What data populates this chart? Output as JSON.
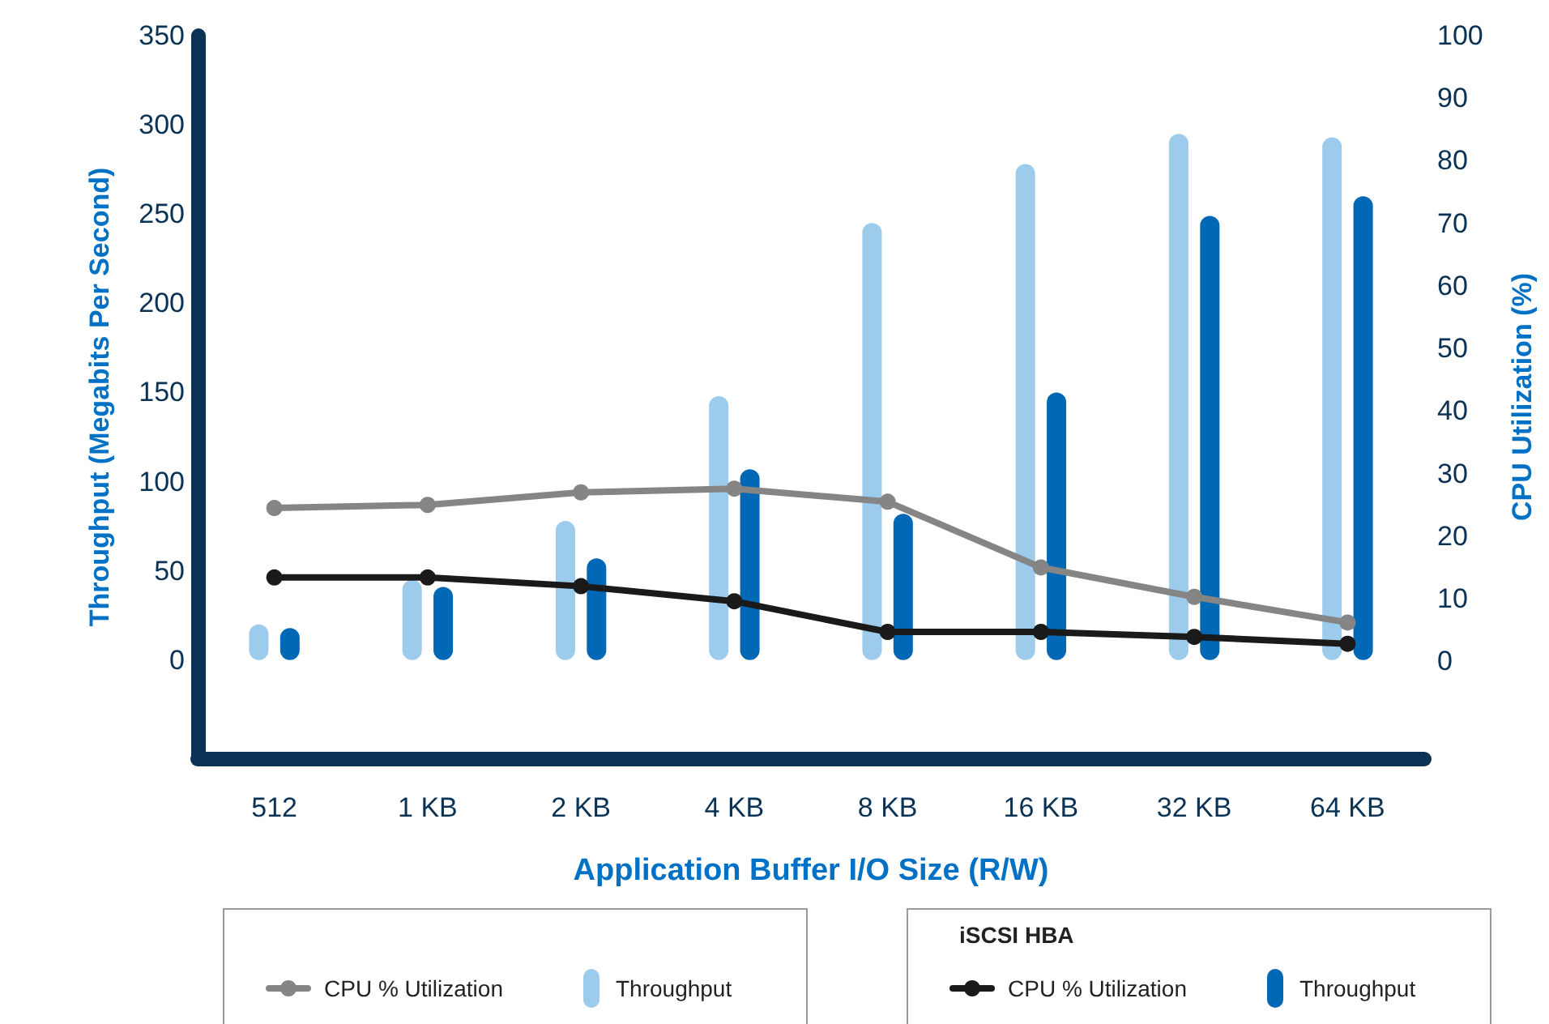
{
  "chart_data": {
    "type": "bar",
    "xlabel": "Application Buffer I/O Size (R/W)",
    "ylabel": "Throughput (Megabits Per Second)",
    "y2label": "CPU Utilization (%)",
    "categories": [
      "512",
      "1 KB",
      "2 KB",
      "4 KB",
      "8 KB",
      "16 KB",
      "32 KB",
      "64 KB"
    ],
    "series": [
      {
        "name": "CPU % Utilization",
        "type": "line",
        "axis": "y2",
        "color": "#858585",
        "values": [
          24.5,
          25,
          27,
          27.6,
          25.5,
          15,
          10.3,
          6.2
        ]
      },
      {
        "name": "Throughput",
        "color": "#9dcbeb",
        "values": [
          20,
          45,
          78,
          148,
          245,
          278,
          295,
          293
        ]
      },
      {
        "name": "CPU % Utilization",
        "type": "line",
        "axis": "y2",
        "color": "#1a1a1a",
        "values": [
          13.4,
          13.4,
          12,
          9.6,
          4.7,
          4.7,
          3.9,
          2.8
        ]
      },
      {
        "name": "Throughput",
        "color": "#0068b5",
        "values": [
          18,
          41,
          57,
          107,
          82,
          150,
          249,
          260
        ]
      }
    ],
    "ylim": [
      -55,
      350
    ],
    "yticks": [
      0,
      50,
      100,
      150,
      200,
      250,
      300,
      350
    ],
    "y2lim": [
      -15.5,
      100
    ],
    "y2ticks": [
      0,
      10,
      20,
      30,
      40,
      50,
      60,
      70,
      80,
      90,
      100
    ],
    "annotations": [
      "iSCSI HBA"
    ],
    "marker": "circle",
    "grid": false,
    "legend": "bottom"
  }
}
